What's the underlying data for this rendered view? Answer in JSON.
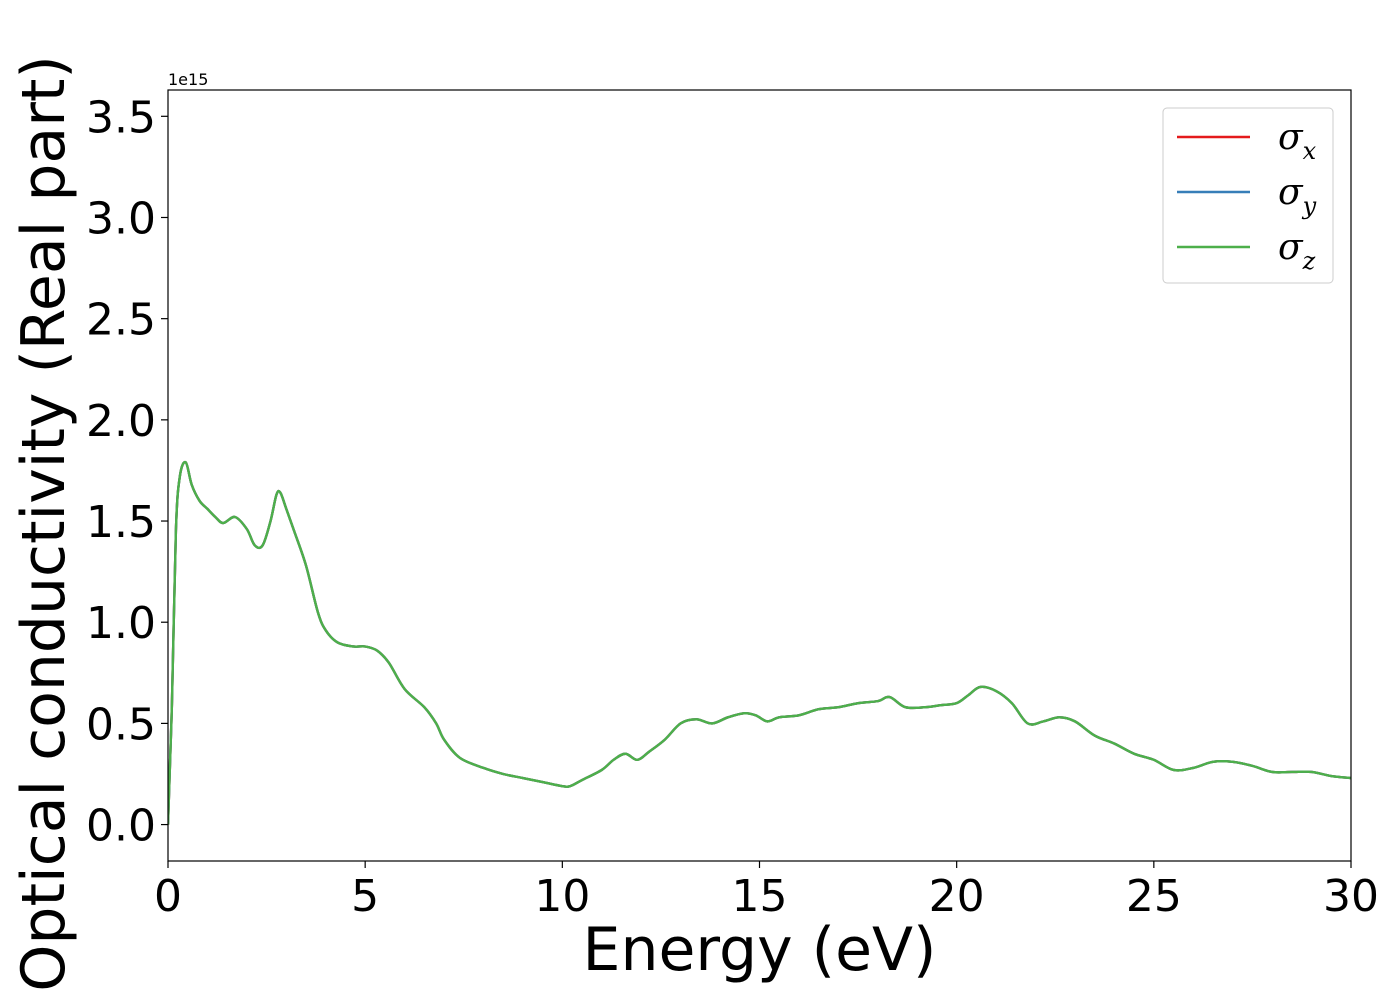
{
  "chart_data": {
    "type": "line",
    "xlabel": "Energy (eV)",
    "ylabel": "Optical conductivity (Real part)",
    "y_offset_text": "1e15",
    "xlim": [
      0,
      30
    ],
    "ylim": [
      -0.18,
      3.63
    ],
    "xticks": [
      0,
      5,
      10,
      15,
      20,
      25,
      30
    ],
    "xtick_labels": [
      "0",
      "5",
      "10",
      "15",
      "20",
      "25",
      "30"
    ],
    "yticks": [
      0.0,
      0.5,
      1.0,
      1.5,
      2.0,
      2.5,
      3.0,
      3.5
    ],
    "ytick_labels": [
      "0.0",
      "0.5",
      "1.0",
      "1.5",
      "2.0",
      "2.5",
      "3.0",
      "3.5"
    ],
    "grid": false,
    "legend_position": "top-right",
    "x": [
      0,
      0.1,
      0.2,
      0.3,
      0.45,
      0.6,
      0.8,
      1.0,
      1.2,
      1.4,
      1.7,
      2.0,
      2.2,
      2.4,
      2.6,
      2.75,
      2.85,
      3.0,
      3.2,
      3.5,
      3.8,
      4.0,
      4.3,
      4.7,
      5.0,
      5.3,
      5.6,
      6.0,
      6.5,
      6.8,
      7.0,
      7.4,
      8.0,
      8.5,
      9.0,
      9.5,
      10.0,
      10.2,
      10.5,
      11.0,
      11.3,
      11.6,
      11.9,
      12.2,
      12.6,
      13.0,
      13.4,
      13.8,
      14.2,
      14.6,
      14.9,
      15.2,
      15.5,
      16.0,
      16.5,
      17.0,
      17.5,
      18.0,
      18.3,
      18.7,
      19.2,
      19.6,
      20.0,
      20.3,
      20.6,
      21.0,
      21.4,
      21.8,
      22.2,
      22.6,
      23.0,
      23.5,
      24.0,
      24.5,
      25.0,
      25.5,
      26.0,
      26.5,
      27.0,
      27.5,
      28.0,
      28.5,
      29.0,
      29.5,
      30.0
    ],
    "series": [
      {
        "name": "x",
        "color": "#e41a1c",
        "values": [
          0.0,
          0.6,
          1.45,
          1.72,
          1.79,
          1.68,
          1.6,
          1.56,
          1.52,
          1.49,
          1.52,
          1.46,
          1.38,
          1.38,
          1.5,
          1.63,
          1.64,
          1.56,
          1.45,
          1.28,
          1.05,
          0.96,
          0.9,
          0.88,
          0.88,
          0.86,
          0.8,
          0.67,
          0.58,
          0.5,
          0.42,
          0.33,
          0.28,
          0.25,
          0.23,
          0.21,
          0.19,
          0.19,
          0.22,
          0.27,
          0.32,
          0.35,
          0.32,
          0.36,
          0.42,
          0.5,
          0.52,
          0.5,
          0.53,
          0.55,
          0.54,
          0.51,
          0.53,
          0.54,
          0.57,
          0.58,
          0.6,
          0.61,
          0.63,
          0.58,
          0.58,
          0.59,
          0.6,
          0.64,
          0.68,
          0.66,
          0.6,
          0.5,
          0.51,
          0.53,
          0.51,
          0.44,
          0.4,
          0.35,
          0.32,
          0.27,
          0.28,
          0.31,
          0.31,
          0.29,
          0.26,
          0.26,
          0.26,
          0.24,
          0.23
        ]
      },
      {
        "name": "y",
        "color": "#377eb8",
        "values": [
          0.0,
          0.6,
          1.45,
          1.72,
          1.79,
          1.68,
          1.6,
          1.56,
          1.52,
          1.49,
          1.52,
          1.46,
          1.38,
          1.38,
          1.5,
          1.63,
          1.64,
          1.56,
          1.45,
          1.28,
          1.05,
          0.96,
          0.9,
          0.88,
          0.88,
          0.86,
          0.8,
          0.67,
          0.58,
          0.5,
          0.42,
          0.33,
          0.28,
          0.25,
          0.23,
          0.21,
          0.19,
          0.19,
          0.22,
          0.27,
          0.32,
          0.35,
          0.32,
          0.36,
          0.42,
          0.5,
          0.52,
          0.5,
          0.53,
          0.55,
          0.54,
          0.51,
          0.53,
          0.54,
          0.57,
          0.58,
          0.6,
          0.61,
          0.63,
          0.58,
          0.58,
          0.59,
          0.6,
          0.64,
          0.68,
          0.66,
          0.6,
          0.5,
          0.51,
          0.53,
          0.51,
          0.44,
          0.4,
          0.35,
          0.32,
          0.27,
          0.28,
          0.31,
          0.31,
          0.29,
          0.26,
          0.26,
          0.26,
          0.24,
          0.23
        ]
      },
      {
        "name": "z",
        "color": "#4daf4a",
        "values": [
          0.0,
          0.6,
          1.45,
          1.72,
          1.79,
          1.68,
          1.6,
          1.56,
          1.52,
          1.49,
          1.52,
          1.46,
          1.38,
          1.38,
          1.5,
          1.63,
          1.64,
          1.56,
          1.45,
          1.28,
          1.05,
          0.96,
          0.9,
          0.88,
          0.88,
          0.86,
          0.8,
          0.67,
          0.58,
          0.5,
          0.42,
          0.33,
          0.28,
          0.25,
          0.23,
          0.21,
          0.19,
          0.19,
          0.22,
          0.27,
          0.32,
          0.35,
          0.32,
          0.36,
          0.42,
          0.5,
          0.52,
          0.5,
          0.53,
          0.55,
          0.54,
          0.51,
          0.53,
          0.54,
          0.57,
          0.58,
          0.6,
          0.61,
          0.63,
          0.58,
          0.58,
          0.59,
          0.6,
          0.64,
          0.68,
          0.66,
          0.6,
          0.5,
          0.51,
          0.53,
          0.51,
          0.44,
          0.4,
          0.35,
          0.32,
          0.27,
          0.28,
          0.31,
          0.31,
          0.29,
          0.26,
          0.26,
          0.26,
          0.24,
          0.23
        ]
      }
    ],
    "legend": [
      {
        "symbol": "σ",
        "sub": "x",
        "color": "#e41a1c"
      },
      {
        "symbol": "σ",
        "sub": "y",
        "color": "#377eb8"
      },
      {
        "symbol": "σ",
        "sub": "z",
        "color": "#4daf4a"
      }
    ]
  }
}
